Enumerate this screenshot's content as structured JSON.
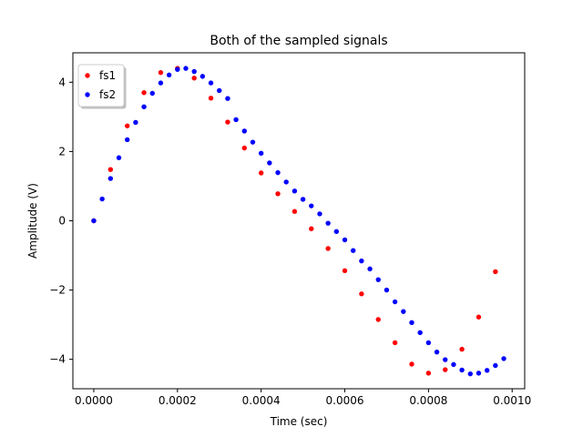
{
  "chart_data": {
    "type": "scatter",
    "title": "Both of the sampled signals",
    "xlabel": "Time (sec)",
    "ylabel": "Amplitude (V)",
    "xlim": [
      -5e-05,
      0.00103
    ],
    "ylim": [
      -4.85,
      4.85
    ],
    "xticks": [
      0.0,
      0.0002,
      0.0004,
      0.0006,
      0.0008,
      0.001
    ],
    "xtick_labels": [
      "0.0000",
      "0.0002",
      "0.0004",
      "0.0006",
      "0.0008",
      "0.0010"
    ],
    "yticks": [
      -4,
      -2,
      0,
      2,
      4
    ],
    "ytick_labels": [
      "−4",
      "−2",
      "0",
      "2",
      "4"
    ],
    "grid": false,
    "legend_position": "top-left",
    "series": [
      {
        "name": "fs1",
        "color": "#ff0000",
        "x": [
          0.0,
          4e-05,
          8e-05,
          0.00012,
          0.00016,
          0.0002,
          0.00024,
          0.00028,
          0.00032,
          0.00036,
          0.0004,
          0.00044,
          0.00048,
          0.00052,
          0.00056,
          0.0006,
          0.00064,
          0.00068,
          0.00072,
          0.00076,
          0.0008,
          0.00084,
          0.00088,
          0.00092,
          0.00096
        ],
        "y": [
          0.0,
          1.48,
          2.74,
          3.7,
          4.28,
          4.4,
          4.12,
          3.54,
          2.85,
          2.1,
          1.38,
          0.78,
          0.27,
          -0.23,
          -0.8,
          -1.44,
          -2.11,
          -2.85,
          -3.52,
          -4.14,
          -4.4,
          -4.3,
          -3.71,
          -2.78,
          -1.47
        ]
      },
      {
        "name": "fs2",
        "color": "#0000ff",
        "x": [
          0.0,
          2e-05,
          4e-05,
          6e-05,
          8e-05,
          0.0001,
          0.00012,
          0.00014,
          0.00016,
          0.00018,
          0.0002,
          0.00022,
          0.00024,
          0.00026,
          0.00028,
          0.0003,
          0.00032,
          0.00034,
          0.00036,
          0.00038,
          0.0004,
          0.00042,
          0.00044,
          0.00046,
          0.00048,
          0.0005,
          0.00052,
          0.00054,
          0.00056,
          0.00058,
          0.0006,
          0.00062,
          0.00064,
          0.00066,
          0.00068,
          0.0007,
          0.00072,
          0.00074,
          0.00076,
          0.00078,
          0.0008,
          0.00082,
          0.00084,
          0.00086,
          0.00088,
          0.0009,
          0.00092,
          0.00094,
          0.00096,
          0.00098
        ],
        "y": [
          0.0,
          0.63,
          1.22,
          1.82,
          2.34,
          2.84,
          3.29,
          3.68,
          3.98,
          4.21,
          4.37,
          4.4,
          4.31,
          4.17,
          3.98,
          3.76,
          3.53,
          2.92,
          2.59,
          2.27,
          1.95,
          1.67,
          1.39,
          1.12,
          0.86,
          0.62,
          0.43,
          0.2,
          -0.07,
          -0.31,
          -0.55,
          -0.86,
          -1.16,
          -1.39,
          -1.7,
          -2.0,
          -2.34,
          -2.62,
          -2.94,
          -3.23,
          -3.52,
          -3.79,
          -4.01,
          -4.15,
          -4.31,
          -4.42,
          -4.4,
          -4.32,
          -4.18,
          -3.98
        ]
      }
    ]
  }
}
